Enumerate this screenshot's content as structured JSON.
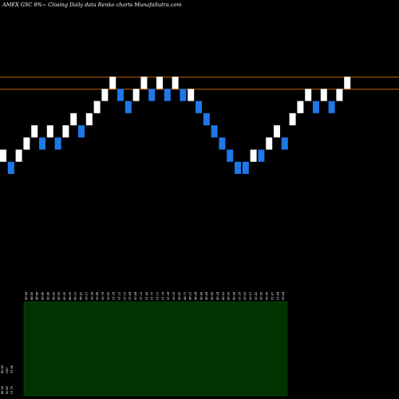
{
  "chart_data": {
    "type": "renko",
    "title": "AMEX  GSC 8%~  Closing Daily data  Renko  charts MunafaSutra.com",
    "ylim": [
      44.0,
      55.0
    ],
    "reference_lines": [
      52.0,
      51.5
    ],
    "bricks": [
      {
        "price": 49.0,
        "dir": "up"
      },
      {
        "price": 48.5,
        "dir": "down"
      },
      {
        "price": 49.0,
        "dir": "up"
      },
      {
        "price": 49.5,
        "dir": "up"
      },
      {
        "price": 50.0,
        "dir": "up"
      },
      {
        "price": 49.5,
        "dir": "down"
      },
      {
        "price": 50.0,
        "dir": "up"
      },
      {
        "price": 49.5,
        "dir": "down"
      },
      {
        "price": 50.0,
        "dir": "up"
      },
      {
        "price": 50.5,
        "dir": "up"
      },
      {
        "price": 50.0,
        "dir": "down"
      },
      {
        "price": 50.5,
        "dir": "up"
      },
      {
        "price": 51.0,
        "dir": "up"
      },
      {
        "price": 51.5,
        "dir": "up"
      },
      {
        "price": 52.0,
        "dir": "up"
      },
      {
        "price": 51.5,
        "dir": "down"
      },
      {
        "price": 51.0,
        "dir": "down"
      },
      {
        "price": 51.5,
        "dir": "up"
      },
      {
        "price": 52.0,
        "dir": "up"
      },
      {
        "price": 51.5,
        "dir": "down"
      },
      {
        "price": 52.0,
        "dir": "up"
      },
      {
        "price": 51.5,
        "dir": "down"
      },
      {
        "price": 52.0,
        "dir": "up"
      },
      {
        "price": 51.5,
        "dir": "down"
      },
      {
        "price": 51.5,
        "dir": "up"
      },
      {
        "price": 51.0,
        "dir": "down"
      },
      {
        "price": 50.5,
        "dir": "down"
      },
      {
        "price": 50.0,
        "dir": "down"
      },
      {
        "price": 49.5,
        "dir": "down"
      },
      {
        "price": 49.0,
        "dir": "down"
      },
      {
        "price": 48.5,
        "dir": "down"
      },
      {
        "price": 48.5,
        "dir": "down"
      },
      {
        "price": 49.0,
        "dir": "up"
      },
      {
        "price": 49.0,
        "dir": "down"
      },
      {
        "price": 49.5,
        "dir": "up"
      },
      {
        "price": 50.0,
        "dir": "up"
      },
      {
        "price": 49.5,
        "dir": "down"
      },
      {
        "price": 50.5,
        "dir": "up"
      },
      {
        "price": 51.0,
        "dir": "up"
      },
      {
        "price": 51.5,
        "dir": "up"
      },
      {
        "price": 51.0,
        "dir": "down"
      },
      {
        "price": 51.5,
        "dir": "up"
      },
      {
        "price": 51.0,
        "dir": "down"
      },
      {
        "price": 51.5,
        "dir": "up"
      },
      {
        "price": 52.0,
        "dir": "up"
      }
    ],
    "date_labels": [
      "49.08",
      "48.85",
      "48.88",
      "49.40",
      "49.40",
      "49.02",
      "49.55",
      "49.55",
      "48.95",
      "49.12",
      "48.92",
      "50.11",
      "50.36",
      "50.48",
      "50.78",
      "50.81",
      "51.18",
      "51.22",
      "51.15",
      "51.64",
      "50.84",
      "51.23",
      "51.60",
      "51.71",
      "51.13",
      "51.70",
      "51.54",
      "50.55",
      "49.41",
      "48.71",
      "48.91",
      "48.64",
      "49.06",
      "49.04",
      "49.42",
      "49.34",
      "49.53",
      "49.93",
      "49.98",
      "51.16",
      "50.01",
      "50.11",
      "50.42",
      "50.95",
      "50.90",
      "51.07",
      "51.04",
      "50.64"
    ],
    "volume_panel": {
      "color": "#003300",
      "labels": [
        "48.56",
        "50.81",
        "51.75",
        "46.96",
        "GSC",
        "51.98"
      ]
    },
    "colors": {
      "background": "#000000",
      "up_brick": "#ffffff",
      "down_brick": "#1e78e6",
      "reference_line": "#c06000",
      "text": "#ffffff"
    }
  }
}
